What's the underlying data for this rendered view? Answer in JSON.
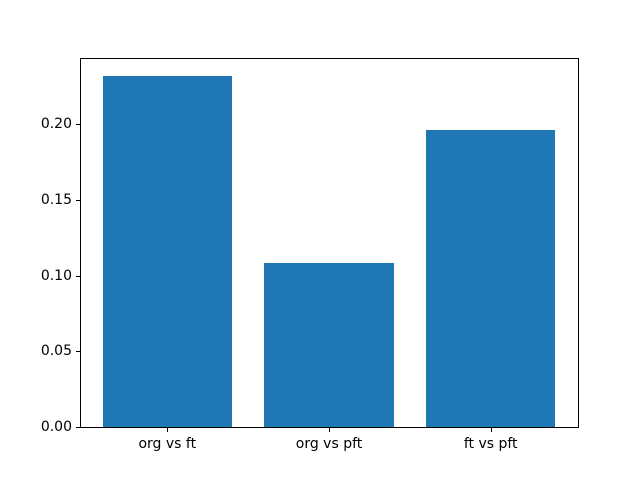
{
  "figure": {
    "background": "#ffffff"
  },
  "chart_data": {
    "type": "bar",
    "title": "",
    "xlabel": "",
    "ylabel": "",
    "categories": [
      "org vs ft",
      "org vs pft",
      "ft vs pft"
    ],
    "values": [
      0.232,
      0.108,
      0.196
    ],
    "bar_color": "#1f77b4",
    "bar_width_fraction": 0.8,
    "xlim": [
      -0.54,
      2.54
    ],
    "ylim": [
      0,
      0.2436
    ],
    "yticks": [
      0.0,
      0.05,
      0.1,
      0.15,
      0.2
    ],
    "ytick_labels": [
      "0.00",
      "0.05",
      "0.10",
      "0.15",
      "0.20"
    ],
    "grid": false,
    "legend": "none",
    "spine_color": "#000000",
    "text_color": "#000000"
  }
}
